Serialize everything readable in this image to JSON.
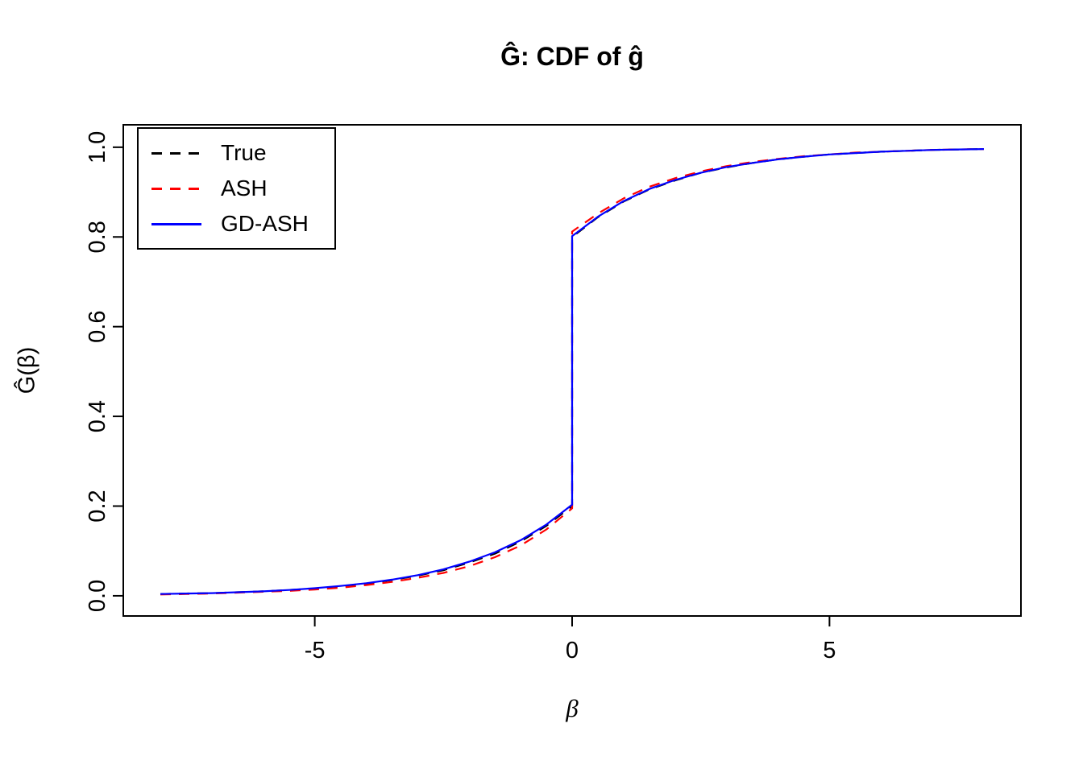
{
  "chart_data": {
    "type": "line",
    "title": "Ĝ: CDF of ĝ",
    "xlabel": "β",
    "ylabel": "Ĝ(β)",
    "axes": {
      "xlim": [
        -8.72,
        8.72
      ],
      "ylim": [
        -0.045,
        1.05
      ],
      "xticks": [
        -5,
        0,
        5
      ],
      "yticks": [
        0.0,
        0.2,
        0.4,
        0.6,
        0.8,
        1.0
      ],
      "grid": false
    },
    "legend": {
      "position": "top-left",
      "entries": [
        {
          "label": "True",
          "color": "#000000",
          "dash": "dashed"
        },
        {
          "label": "ASH",
          "color": "#FF0000",
          "dash": "dashed"
        },
        {
          "label": "GD-ASH",
          "color": "#0000FF",
          "dash": "solid"
        }
      ]
    },
    "series": [
      {
        "name": "True",
        "color": "#000000",
        "style": "dashed",
        "points": [
          [
            -8,
            0.004
          ],
          [
            -7.5,
            0.005
          ],
          [
            -7,
            0.006
          ],
          [
            -6.5,
            0.008
          ],
          [
            -6,
            0.01
          ],
          [
            -5.5,
            0.013
          ],
          [
            -5,
            0.016
          ],
          [
            -4.5,
            0.021
          ],
          [
            -4,
            0.027
          ],
          [
            -3.5,
            0.035
          ],
          [
            -3,
            0.045
          ],
          [
            -2.5,
            0.057
          ],
          [
            -2,
            0.074
          ],
          [
            -1.5,
            0.094
          ],
          [
            -1,
            0.121
          ],
          [
            -0.5,
            0.156
          ],
          [
            0,
            0.2
          ],
          [
            0,
            0.8
          ],
          [
            0.5,
            0.844
          ],
          [
            1,
            0.879
          ],
          [
            1.5,
            0.906
          ],
          [
            2,
            0.926
          ],
          [
            2.5,
            0.943
          ],
          [
            3,
            0.955
          ],
          [
            3.5,
            0.965
          ],
          [
            4,
            0.973
          ],
          [
            4.5,
            0.979
          ],
          [
            5,
            0.984
          ],
          [
            5.5,
            0.987
          ],
          [
            6,
            0.99
          ],
          [
            6.5,
            0.992
          ],
          [
            7,
            0.994
          ],
          [
            7.5,
            0.995
          ],
          [
            8,
            0.996
          ]
        ]
      },
      {
        "name": "ASH",
        "color": "#FF0000",
        "style": "dashed",
        "points": [
          [
            -8,
            0.003
          ],
          [
            -7.5,
            0.004
          ],
          [
            -7,
            0.005
          ],
          [
            -6.5,
            0.007
          ],
          [
            -6,
            0.009
          ],
          [
            -5.5,
            0.011
          ],
          [
            -5,
            0.014
          ],
          [
            -4.5,
            0.018
          ],
          [
            -4,
            0.024
          ],
          [
            -3.5,
            0.031
          ],
          [
            -3,
            0.04
          ],
          [
            -2.5,
            0.051
          ],
          [
            -2,
            0.066
          ],
          [
            -1.5,
            0.086
          ],
          [
            -1,
            0.112
          ],
          [
            -0.5,
            0.148
          ],
          [
            0,
            0.195
          ],
          [
            0,
            0.812
          ],
          [
            0.5,
            0.852
          ],
          [
            1,
            0.886
          ],
          [
            1.5,
            0.912
          ],
          [
            2,
            0.931
          ],
          [
            2.5,
            0.946
          ],
          [
            3,
            0.958
          ],
          [
            3.5,
            0.967
          ],
          [
            4,
            0.974
          ],
          [
            4.5,
            0.98
          ],
          [
            5,
            0.984
          ],
          [
            5.5,
            0.988
          ],
          [
            6,
            0.99
          ],
          [
            6.5,
            0.992
          ],
          [
            7,
            0.994
          ],
          [
            7.5,
            0.995
          ],
          [
            8,
            0.996
          ]
        ]
      },
      {
        "name": "GD-ASH",
        "color": "#0000FF",
        "style": "solid",
        "points": [
          [
            -8,
            0.004
          ],
          [
            -7.5,
            0.005
          ],
          [
            -7,
            0.006
          ],
          [
            -6.5,
            0.008
          ],
          [
            -6,
            0.01
          ],
          [
            -5.5,
            0.013
          ],
          [
            -5,
            0.017
          ],
          [
            -4.5,
            0.022
          ],
          [
            -4,
            0.028
          ],
          [
            -3.5,
            0.036
          ],
          [
            -3,
            0.046
          ],
          [
            -2.5,
            0.059
          ],
          [
            -2,
            0.076
          ],
          [
            -1.5,
            0.097
          ],
          [
            -1,
            0.124
          ],
          [
            -0.5,
            0.159
          ],
          [
            0,
            0.203
          ],
          [
            0,
            0.802
          ],
          [
            0.5,
            0.845
          ],
          [
            1,
            0.88
          ],
          [
            1.5,
            0.907
          ],
          [
            2,
            0.927
          ],
          [
            2.5,
            0.943
          ],
          [
            3,
            0.956
          ],
          [
            3.5,
            0.965
          ],
          [
            4,
            0.973
          ],
          [
            4.5,
            0.979
          ],
          [
            5,
            0.984
          ],
          [
            5.5,
            0.987
          ],
          [
            6,
            0.99
          ],
          [
            6.5,
            0.992
          ],
          [
            7,
            0.994
          ],
          [
            7.5,
            0.995
          ],
          [
            8,
            0.996
          ]
        ]
      }
    ]
  }
}
